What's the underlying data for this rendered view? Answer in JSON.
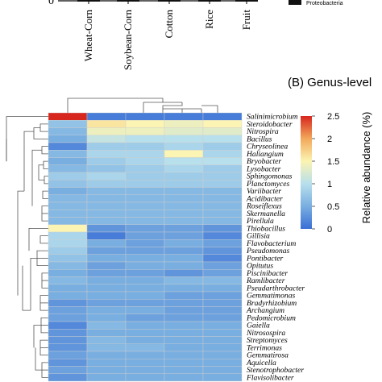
{
  "panel_top": {
    "axis_zero_label": "0",
    "samples": [
      "Wheat-Corn",
      "Soybean-Corn",
      "Cotton",
      "Rice",
      "Fruit"
    ],
    "legend_entry": "Proteobacteria",
    "legend_color": "#111111"
  },
  "chart_data": {
    "type": "heatmap",
    "title": "(B) Genus-level",
    "columns": [
      "Wheat-Corn",
      "Soybean-Corn",
      "Cotton",
      "Rice",
      "Fruit"
    ],
    "rows": [
      "Salinimicrobium",
      "Steroidobacter",
      "Nitrospira",
      "Bacillus",
      "Chryseolinea",
      "Haliangium",
      "Bryobacter",
      "Lysobacter",
      "Sphingomonas",
      "Planctomyces",
      "Variibacter",
      "Acidibacter",
      "Roseiflexus",
      "Skermanella",
      "Pirellula",
      "Thiobacillus",
      "Gillisia",
      "Flavobacterium",
      "Pseudomonas",
      "Pontibacter",
      "Opitutus",
      "Piscinibacter",
      "Ramlibacter",
      "Pseudarthrobacter",
      "Gemmatimonas",
      "Bradyrhizobium",
      "Archangium",
      "Pedomicrobium",
      "Gaiella",
      "Nitrosospira",
      "Streptomyces",
      "Terrimonas",
      "Gemmatirosa",
      "Aquicella",
      "Stenotrophobacter",
      "Flavisolibacter"
    ],
    "values": [
      [
        2.5,
        0.1,
        0.1,
        0.1,
        0.1
      ],
      [
        0.7,
        1.6,
        1.5,
        1.4,
        1.5
      ],
      [
        0.6,
        1.4,
        1.4,
        1.3,
        1.3
      ],
      [
        0.5,
        1.1,
        1.0,
        1.0,
        1.0
      ],
      [
        0.2,
        0.8,
        0.8,
        0.9,
        0.8
      ],
      [
        0.6,
        0.9,
        0.9,
        1.5,
        0.9
      ],
      [
        0.5,
        0.8,
        0.9,
        1.0,
        1.0
      ],
      [
        0.6,
        0.7,
        0.8,
        0.9,
        0.8
      ],
      [
        0.8,
        0.9,
        0.8,
        0.8,
        0.8
      ],
      [
        0.7,
        0.8,
        0.8,
        0.8,
        0.8
      ],
      [
        0.5,
        0.6,
        0.6,
        0.6,
        0.6
      ],
      [
        0.6,
        0.6,
        0.6,
        0.6,
        0.6
      ],
      [
        0.6,
        0.6,
        0.6,
        0.6,
        0.6
      ],
      [
        0.6,
        0.6,
        0.6,
        0.6,
        0.6
      ],
      [
        0.6,
        0.6,
        0.6,
        0.6,
        0.6
      ],
      [
        1.5,
        0.3,
        0.4,
        0.4,
        0.3
      ],
      [
        0.9,
        0.1,
        0.4,
        0.4,
        0.2
      ],
      [
        0.9,
        0.5,
        0.4,
        0.5,
        0.4
      ],
      [
        0.8,
        0.4,
        0.4,
        0.4,
        0.3
      ],
      [
        0.7,
        0.5,
        0.5,
        0.5,
        0.2
      ],
      [
        0.6,
        0.4,
        0.5,
        0.5,
        0.4
      ],
      [
        0.5,
        0.4,
        0.4,
        0.3,
        0.4
      ],
      [
        0.6,
        0.5,
        0.5,
        0.6,
        0.6
      ],
      [
        0.5,
        0.5,
        0.5,
        0.5,
        0.5
      ],
      [
        0.5,
        0.5,
        0.5,
        0.4,
        0.4
      ],
      [
        0.3,
        0.4,
        0.4,
        0.4,
        0.4
      ],
      [
        0.4,
        0.5,
        0.5,
        0.4,
        0.4
      ],
      [
        0.4,
        0.5,
        0.4,
        0.4,
        0.4
      ],
      [
        0.2,
        0.6,
        0.5,
        0.5,
        0.5
      ],
      [
        0.3,
        0.5,
        0.5,
        0.5,
        0.5
      ],
      [
        0.3,
        0.6,
        0.5,
        0.5,
        0.5
      ],
      [
        0.3,
        0.6,
        0.6,
        0.5,
        0.5
      ],
      [
        0.4,
        0.5,
        0.5,
        0.5,
        0.5
      ],
      [
        0.3,
        0.5,
        0.5,
        0.5,
        0.5
      ],
      [
        0.4,
        0.5,
        0.5,
        0.5,
        0.5
      ],
      [
        0.3,
        0.5,
        0.5,
        0.5,
        0.5
      ]
    ],
    "colorbar": {
      "label": "Relative abundance (%)",
      "ticks": [
        "0",
        "0.5",
        "1",
        "1.5",
        "2",
        "2.5"
      ],
      "range": [
        0,
        2.5
      ],
      "colors": [
        "#3a6fd6",
        "#79aee0",
        "#b7dfec",
        "#fbf4b2",
        "#f2a85a",
        "#d7261e"
      ]
    }
  }
}
